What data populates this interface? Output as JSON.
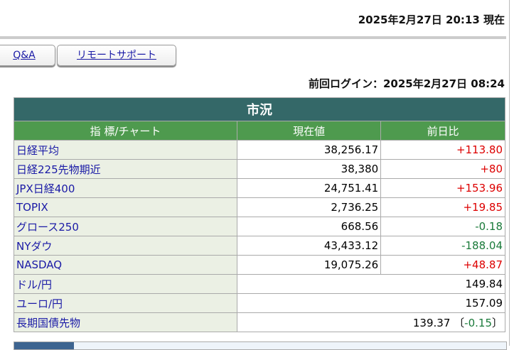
{
  "header": {
    "current_time": "2025年2月27日 20:13 現在",
    "last_login": "前回ログイン：2025年2月27日 08:24"
  },
  "buttons": {
    "qa": "Q&A",
    "remote": "リモートサポート"
  },
  "market": {
    "title": "市況",
    "columns": [
      "指 標/チャート",
      "現在値",
      "前日比"
    ],
    "rows": [
      {
        "name": "日経平均",
        "value": "38,256.17",
        "change": "+113.80",
        "dir": "up"
      },
      {
        "name": "日経225先物期近",
        "value": "38,380",
        "change": "+80",
        "dir": "up"
      },
      {
        "name": "JPX日経400",
        "value": "24,751.41",
        "change": "+153.96",
        "dir": "up"
      },
      {
        "name": "TOPIX",
        "value": "2,736.25",
        "change": "+19.85",
        "dir": "up"
      },
      {
        "name": "グロース250",
        "value": "668.56",
        "change": "-0.18",
        "dir": "dn"
      },
      {
        "name": "NYダウ",
        "value": "43,433.12",
        "change": "-188.04",
        "dir": "dn"
      },
      {
        "name": "NASDAQ",
        "value": "19,075.26",
        "change": "+48.87",
        "dir": "up"
      }
    ],
    "fx": [
      {
        "name": "ドル/円",
        "value": "149.84"
      },
      {
        "name": "ユーロ/円",
        "value": "157.09"
      }
    ],
    "jgb": {
      "name": "長期国債先物",
      "value": "139.37",
      "open": "〔",
      "change": "-0.15",
      "close": "〕"
    }
  }
}
